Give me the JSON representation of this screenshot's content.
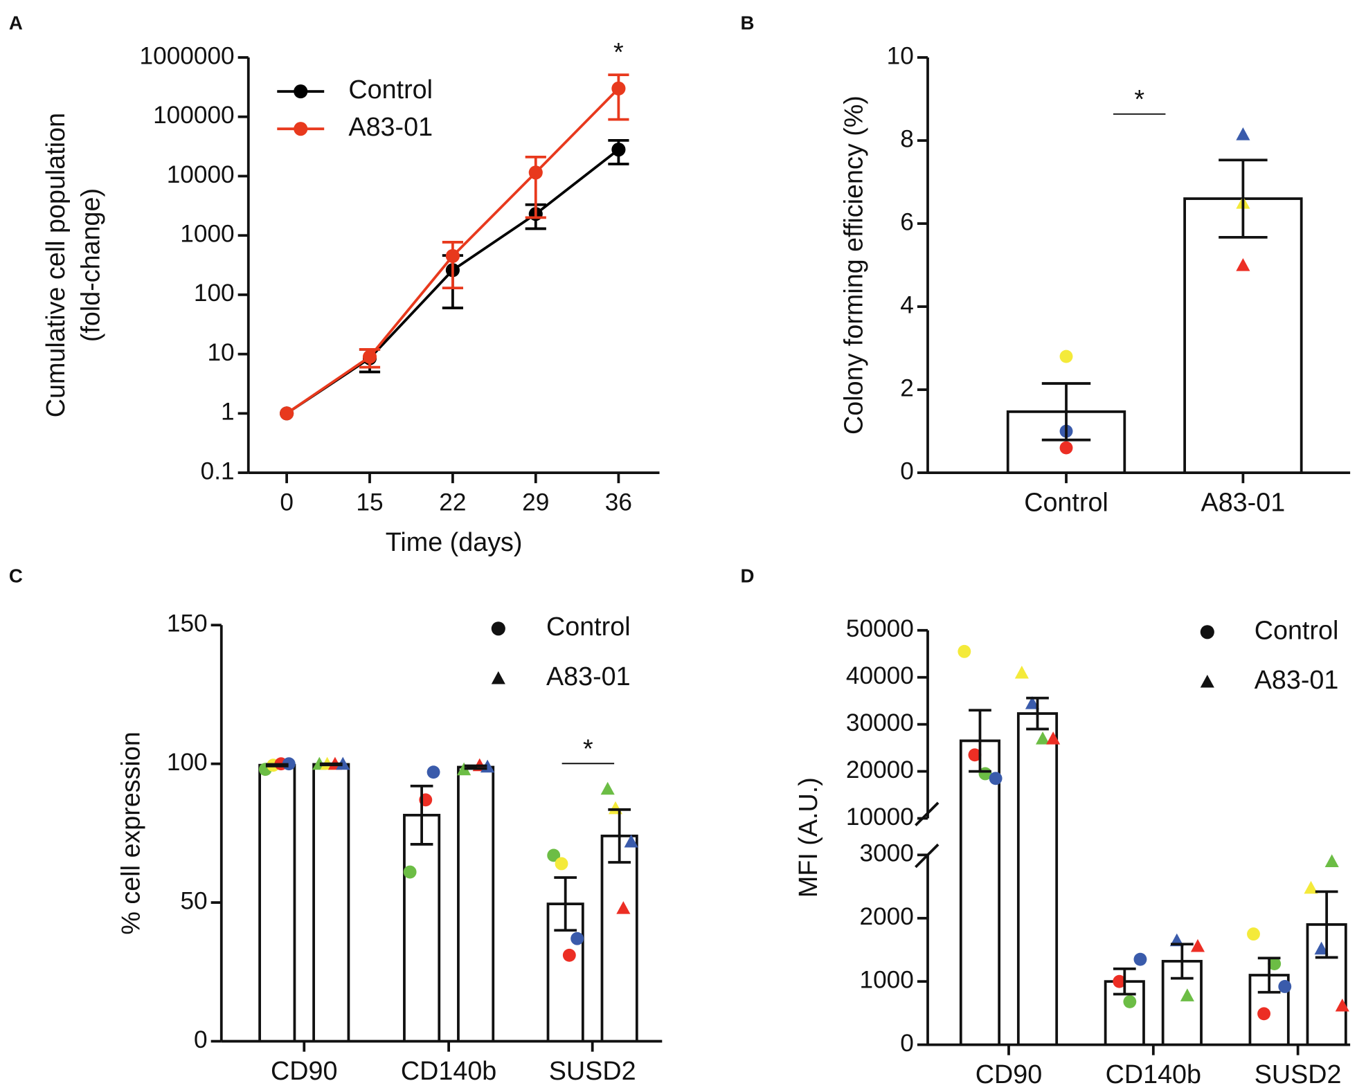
{
  "chart_data": [
    {
      "panel": "A",
      "type": "line",
      "log_y": true,
      "categories": [
        "0",
        "15",
        "22",
        "29",
        "36"
      ],
      "xlabel": "Time (days)",
      "ylabel": [
        "Cumulative cell population",
        "(fold-change)"
      ],
      "ylim": [
        0.1,
        1000000
      ],
      "yticks": [
        0.1,
        1,
        10,
        100,
        1000,
        10000,
        100000,
        1000000
      ],
      "legend": "upper left",
      "annotation": "*",
      "series": [
        {
          "name": "Control",
          "color": "#000000",
          "values": [
            1,
            8.5,
            260,
            2300,
            28000
          ],
          "errors": [
            null,
            3.5,
            200,
            1000,
            12000
          ]
        },
        {
          "name": "A83-01",
          "color": "#e8391d",
          "values": [
            1,
            9,
            450,
            11500,
            300000
          ],
          "errors": [
            null,
            3,
            320,
            9500,
            210000
          ]
        }
      ]
    },
    {
      "panel": "B",
      "type": "bar",
      "categories": [
        "Control",
        "A83-01"
      ],
      "values": [
        1.47,
        6.6
      ],
      "errors": [
        0.68,
        0.93
      ],
      "markers": [
        "circle",
        "triangle"
      ],
      "ylabel": "Colony forming efficiency (%)",
      "ylim": [
        0,
        10
      ],
      "yticks": [
        0,
        2,
        4,
        6,
        8,
        10
      ],
      "annotation": "*",
      "replicates": [
        {
          "color": "#f4ea3a",
          "values": [
            2.8,
            6.5
          ]
        },
        {
          "color": "#3a5bab",
          "values": [
            1.0,
            8.15
          ]
        },
        {
          "color": "#ec2e24",
          "values": [
            0.6,
            5.0
          ]
        }
      ]
    },
    {
      "panel": "C",
      "type": "bar",
      "categories": [
        "CD90",
        "CD140b",
        "SUSD2"
      ],
      "ylabel": "% cell expression",
      "ylim": [
        0,
        150
      ],
      "yticks": [
        0,
        50,
        100,
        150
      ],
      "legend": "upper right",
      "annotation": "*",
      "series": [
        {
          "name": "Control",
          "marker": "circle",
          "values": [
            99.5,
            81.5,
            49.5
          ],
          "errors": [
            0.3,
            10.5,
            9.5
          ],
          "replicates": [
            {
              "color": "#6cbd45",
              "values": [
                98,
                61,
                67
              ]
            },
            {
              "color": "#f4ea3a",
              "values": [
                99.5,
                null,
                64
              ]
            },
            {
              "color": "#ec2e24",
              "values": [
                100,
                87,
                31
              ]
            },
            {
              "color": "#3a5bab",
              "values": [
                100,
                97,
                37
              ]
            }
          ]
        },
        {
          "name": "A83-01",
          "marker": "triangle",
          "values": [
            99.8,
            98.8,
            74
          ],
          "errors": [
            0.2,
            0.5,
            9.5
          ],
          "replicates": [
            {
              "color": "#6cbd45",
              "values": [
                100,
                98,
                91
              ]
            },
            {
              "color": "#f4ea3a",
              "values": [
                100,
                null,
                84
              ]
            },
            {
              "color": "#ec2e24",
              "values": [
                100,
                99.5,
                48
              ]
            },
            {
              "color": "#3a5bab",
              "values": [
                100,
                99,
                72
              ]
            }
          ]
        }
      ]
    },
    {
      "panel": "D",
      "type": "bar",
      "categories": [
        "CD90",
        "CD140b",
        "SUSD2"
      ],
      "ylabel": "MFI (A.U.)",
      "ylim": [
        0,
        50000
      ],
      "axis_break": [
        3000,
        10000
      ],
      "yticks": [
        0,
        1000,
        2000,
        3000,
        10000,
        20000,
        30000,
        40000,
        50000
      ],
      "legend": "upper right",
      "series": [
        {
          "name": "Control",
          "marker": "circle",
          "values": [
            26500,
            1000,
            1100
          ],
          "errors": [
            6500,
            200,
            270
          ],
          "replicates": [
            {
              "color": "#f4ea3a",
              "values": [
                45500,
                null,
                1750
              ]
            },
            {
              "color": "#ec2e24",
              "values": [
                23500,
                1000,
                490
              ]
            },
            {
              "color": "#6cbd45",
              "values": [
                19500,
                680,
                1280
              ]
            },
            {
              "color": "#3a5bab",
              "values": [
                18500,
                1350,
                920
              ]
            }
          ]
        },
        {
          "name": "A83-01",
          "marker": "triangle",
          "values": [
            32300,
            1320,
            1900
          ],
          "errors": [
            3300,
            270,
            520
          ],
          "replicates": [
            {
              "color": "#f4ea3a",
              "values": [
                41000,
                null,
                2480
              ]
            },
            {
              "color": "#3a5bab",
              "values": [
                34500,
                1650,
                1520
              ]
            },
            {
              "color": "#6cbd45",
              "values": [
                27000,
                780,
                2900
              ]
            },
            {
              "color": "#ec2e24",
              "values": [
                27000,
                1560,
                620
              ]
            }
          ]
        }
      ]
    }
  ]
}
